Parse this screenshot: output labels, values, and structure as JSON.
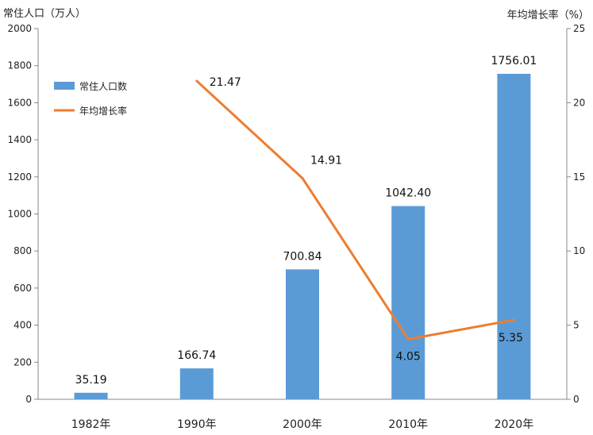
{
  "chart_data": {
    "type": "bar",
    "categories": [
      "1982年",
      "1990年",
      "2000年",
      "2010年",
      "2020年"
    ],
    "series": [
      {
        "name": "常住人口数",
        "type": "bar",
        "axis": "left",
        "values": [
          35.19,
          166.74,
          700.84,
          1042.4,
          1756.01
        ],
        "labels": [
          "35.19",
          "166.74",
          "700.84",
          "1042.40",
          "1756.01"
        ],
        "color": "#5B9BD5"
      },
      {
        "name": "年均增长率",
        "type": "line",
        "axis": "right",
        "values": [
          null,
          21.47,
          14.91,
          4.05,
          5.35
        ],
        "labels": [
          "",
          "21.47",
          "14.91",
          "4.05",
          "5.35"
        ],
        "color": "#ED7D31"
      }
    ],
    "ylabel": "常住人口（万人）",
    "y2label": "年均增长率（%）",
    "ylim": [
      0,
      2000
    ],
    "y2lim": [
      0,
      25
    ],
    "yticks": [
      "0",
      "200",
      "400",
      "600",
      "800",
      "1000",
      "1200",
      "1400",
      "1600",
      "1800",
      "2000"
    ],
    "y2ticks": [
      "0",
      "5",
      "10",
      "15",
      "20",
      "25"
    ],
    "grid": false,
    "legend_position": "upper-left"
  }
}
